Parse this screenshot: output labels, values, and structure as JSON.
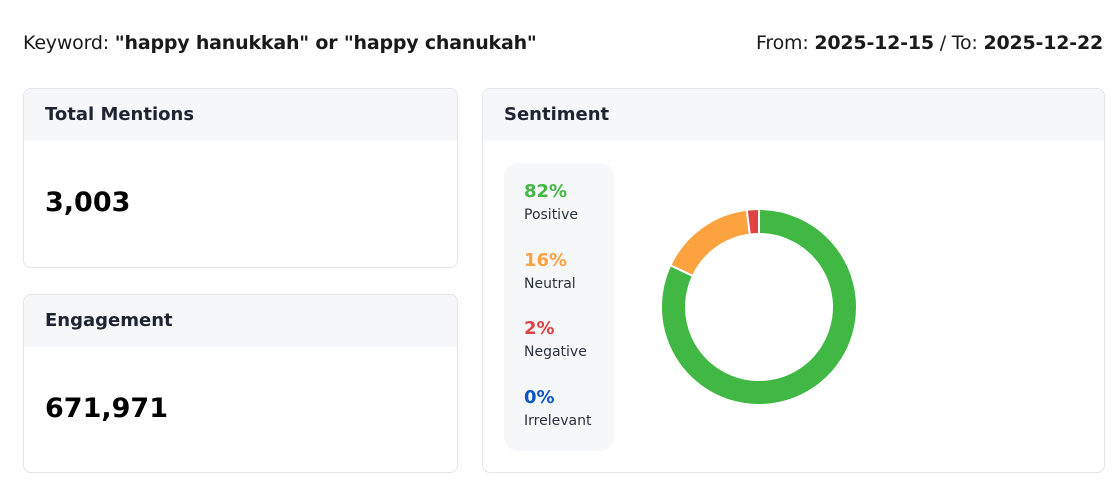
{
  "header": {
    "keyword_label": "Keyword: ",
    "keyword_value": "\"happy hanukkah\" or \"happy chanukah\"",
    "from_label": "From: ",
    "from_value": "2025-12-15",
    "to_label": " / To: ",
    "to_value": "2025-12-22"
  },
  "total_mentions": {
    "title": "Total Mentions",
    "value": "3,003"
  },
  "engagement": {
    "title": "Engagement",
    "value": "671,971"
  },
  "sentiment": {
    "title": "Sentiment",
    "items": [
      {
        "pct": "82%",
        "label": "Positive",
        "color": "#41b843"
      },
      {
        "pct": "16%",
        "label": "Neutral",
        "color": "#fca23f"
      },
      {
        "pct": "2%",
        "label": "Negative",
        "color": "#e04346"
      },
      {
        "pct": "0%",
        "label": "Irrelevant",
        "color": "#0b55c4"
      }
    ]
  },
  "chart_data": {
    "type": "pie",
    "variant": "donut",
    "categories": [
      "Positive",
      "Neutral",
      "Negative",
      "Irrelevant"
    ],
    "values": [
      82,
      16,
      2,
      0
    ],
    "colors": [
      "#41b843",
      "#fca23f",
      "#e04346",
      "#0b55c4"
    ]
  }
}
